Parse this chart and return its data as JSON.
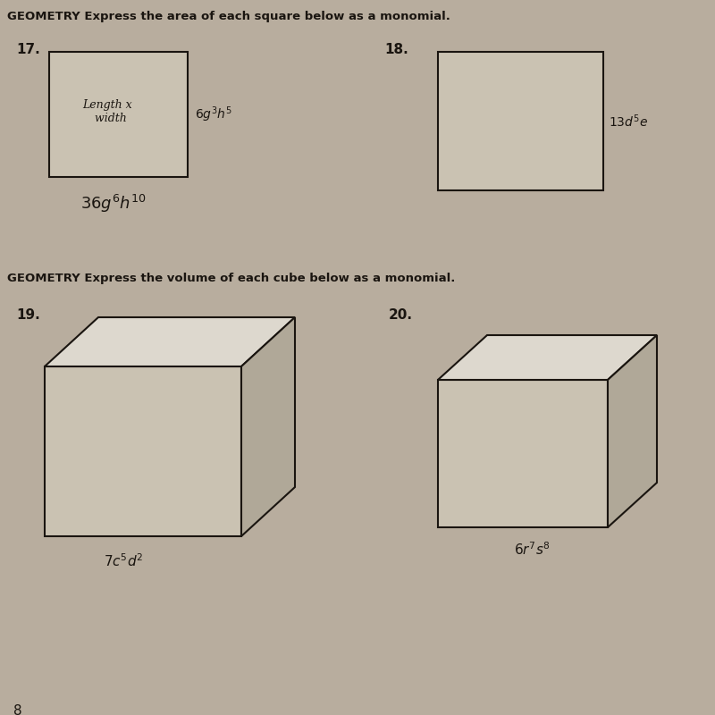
{
  "bg_color": "#b8ad9e",
  "title_area": "GEOMETRY Express the area of each square below as a monomial.",
  "title_volume": "GEOMETRY Express the volume of each cube below as a monomial.",
  "prob17_label": "17.",
  "prob18_label": "18.",
  "prob19_label": "19.",
  "prob20_label": "20.",
  "sq17_side_label": "6g^3h^5",
  "sq17_answer": "36g^6h^{10}",
  "sq18_side_label": "13d^5e",
  "cube19_label": "7c^5d^2",
  "cube20_label": "6r^7s^8",
  "page_num": "8",
  "line_color": "#1a1510",
  "text_color": "#1a1510",
  "face_front": "#cac2b2",
  "face_top": "#ddd8ce",
  "face_right": "#b0a898"
}
